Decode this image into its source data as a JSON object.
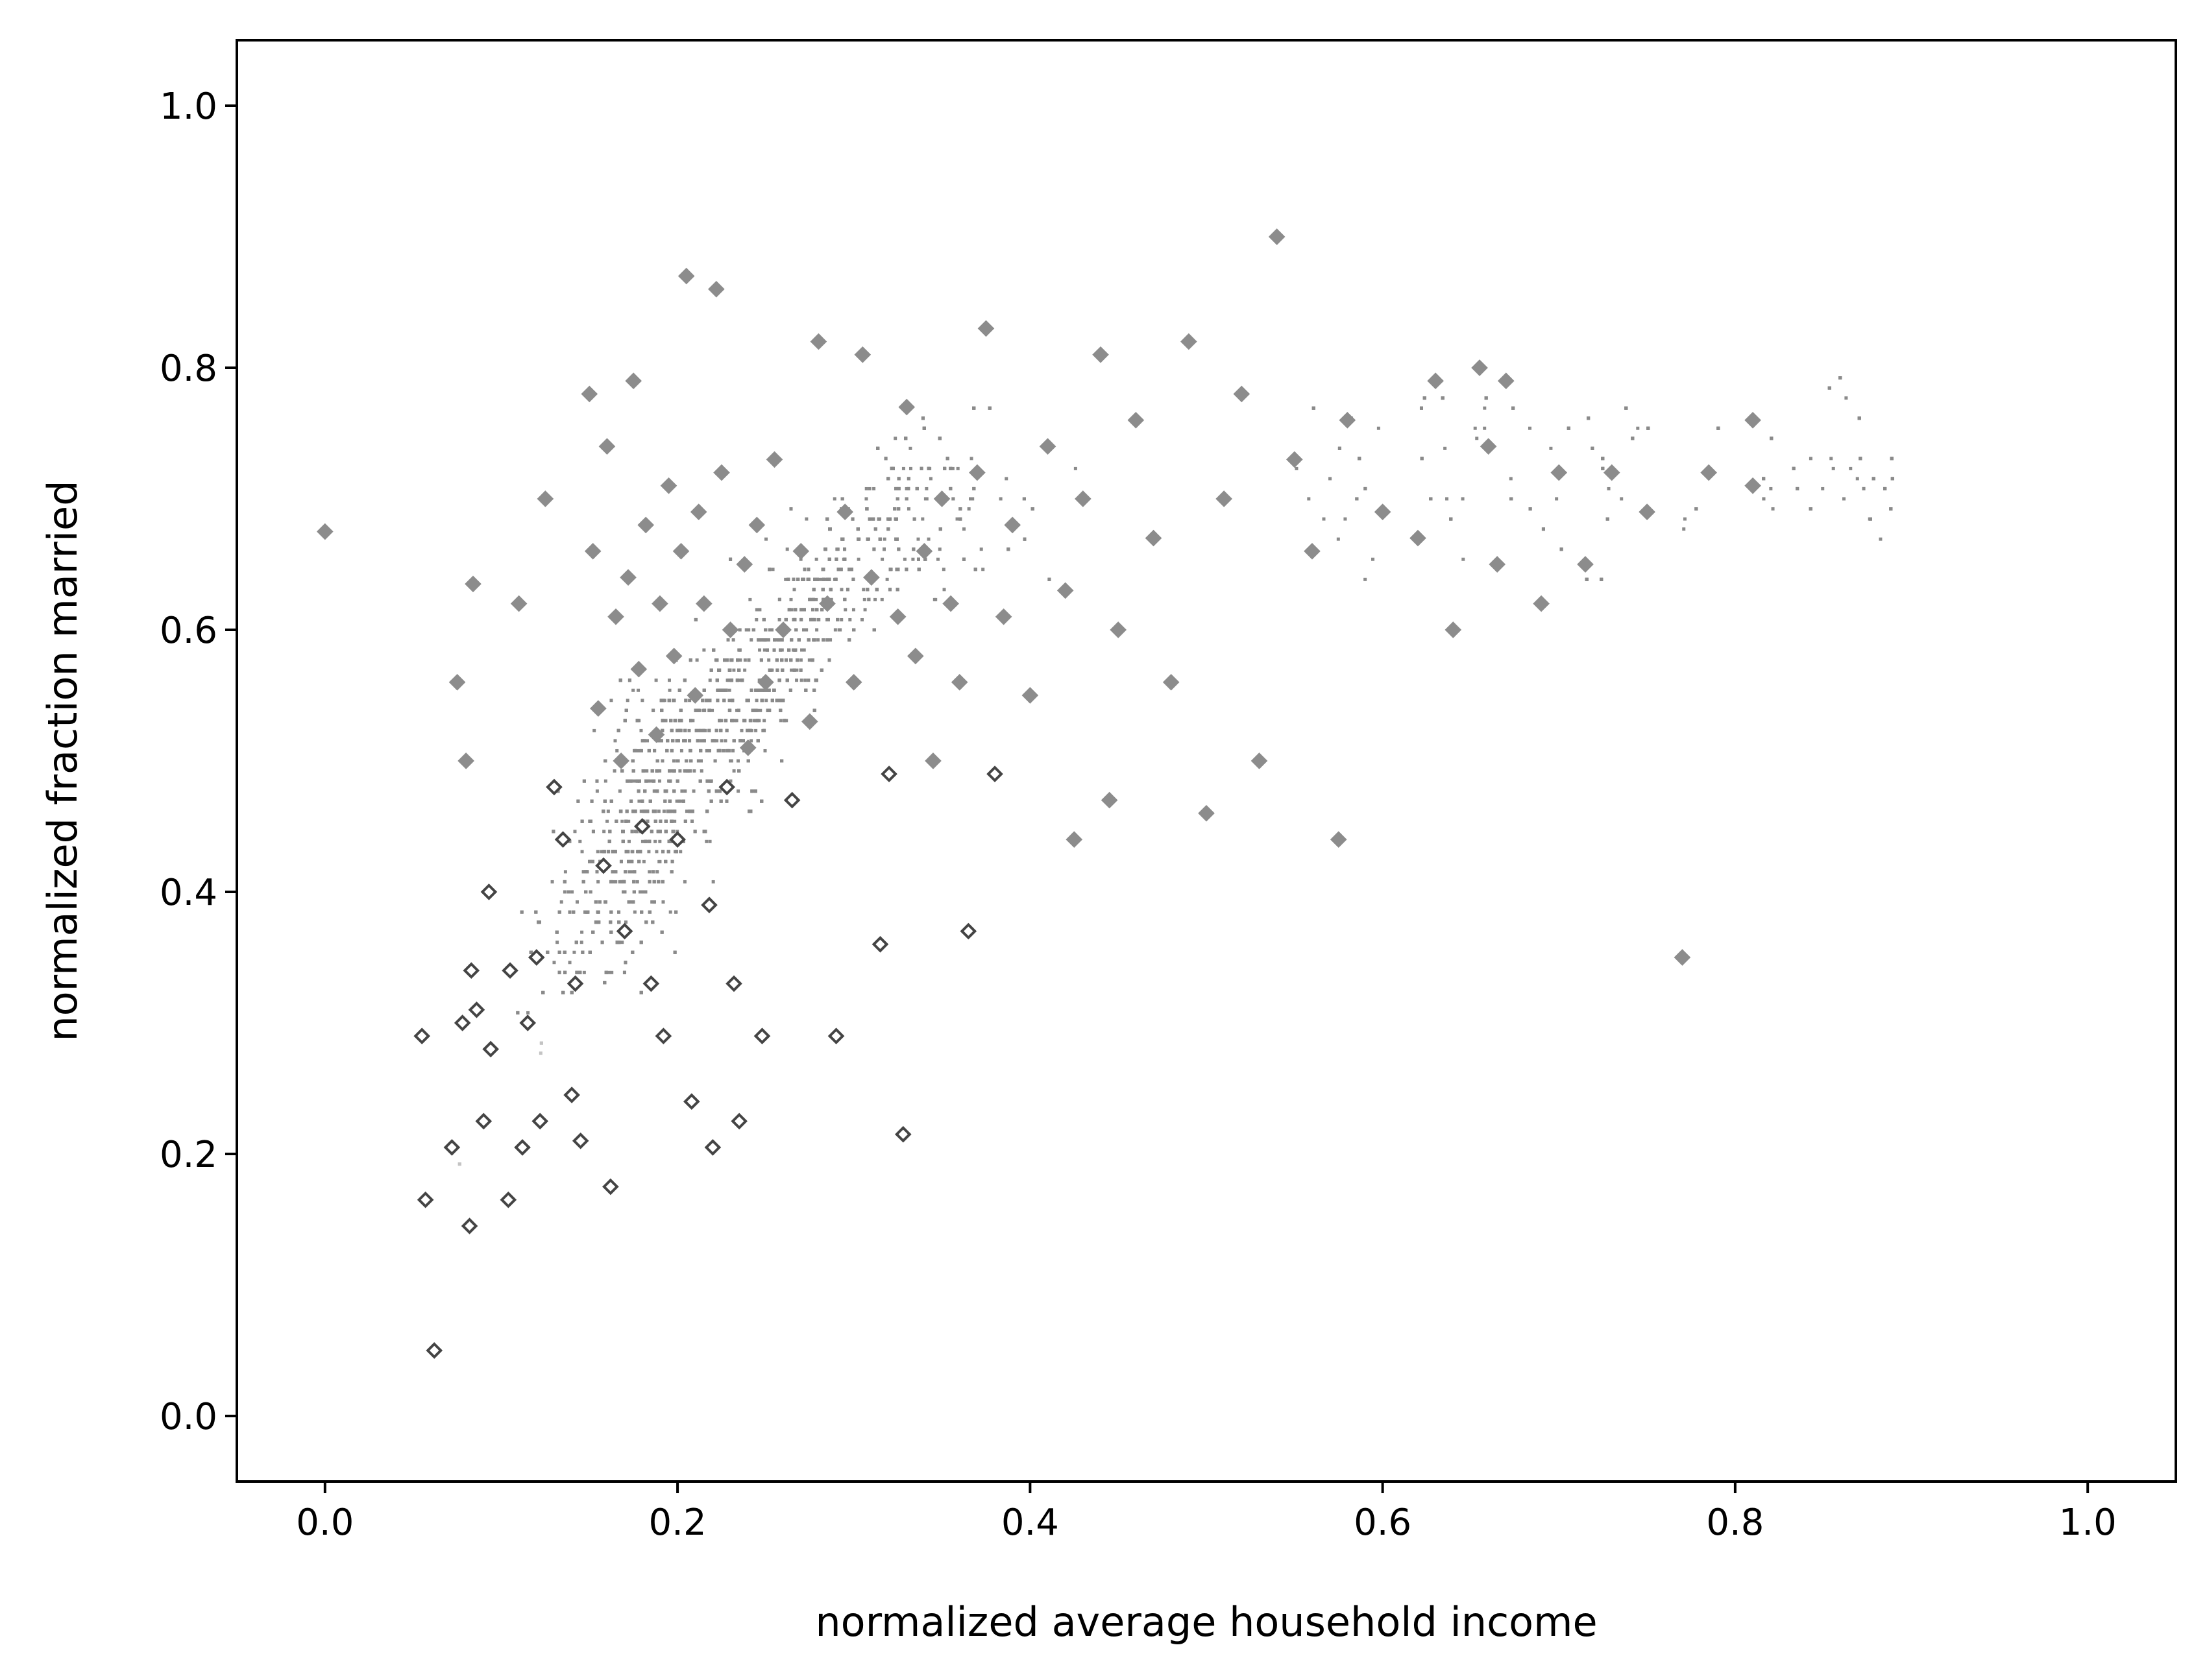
{
  "chart_data": {
    "type": "scatter",
    "title": "",
    "xlabel": "normalized average household income",
    "ylabel": "normalized fraction married",
    "xlim": [
      -0.05,
      1.05
    ],
    "ylim": [
      -0.05,
      1.05
    ],
    "xticks": [
      0.0,
      0.2,
      0.4,
      0.6,
      0.8,
      1.0
    ],
    "yticks": [
      0.0,
      0.2,
      0.4,
      0.6,
      0.8,
      1.0
    ],
    "xtick_labels": [
      "0.0",
      "0.2",
      "0.4",
      "0.6",
      "0.8",
      "1.0"
    ],
    "ytick_labels": [
      "0.0",
      "0.2",
      "0.4",
      "0.6",
      "0.8",
      "1.0"
    ],
    "grid": false,
    "legend": "none",
    "colors": {
      "dots": "#8a8a8a",
      "light_dots": "#c4c4c4",
      "diamond_fill": "#8c8c8c",
      "diamond_dark": "#444444"
    },
    "series": [
      {
        "marker": "diamond",
        "points": [
          [
            0.0,
            0.675
          ],
          [
            0.055,
            0.29
          ],
          [
            0.057,
            0.165
          ],
          [
            0.062,
            0.05
          ],
          [
            0.072,
            0.205
          ],
          [
            0.075,
            0.56
          ],
          [
            0.078,
            0.3
          ],
          [
            0.08,
            0.5
          ],
          [
            0.082,
            0.145
          ],
          [
            0.083,
            0.34
          ],
          [
            0.084,
            0.635
          ],
          [
            0.086,
            0.31
          ],
          [
            0.09,
            0.225
          ],
          [
            0.093,
            0.4
          ],
          [
            0.094,
            0.28
          ],
          [
            0.104,
            0.165
          ],
          [
            0.105,
            0.34
          ],
          [
            0.11,
            0.62
          ],
          [
            0.112,
            0.205
          ],
          [
            0.115,
            0.3
          ],
          [
            0.12,
            0.35
          ],
          [
            0.122,
            0.225
          ],
          [
            0.125,
            0.7
          ],
          [
            0.13,
            0.48
          ],
          [
            0.135,
            0.44
          ],
          [
            0.14,
            0.245
          ],
          [
            0.142,
            0.33
          ],
          [
            0.145,
            0.21
          ],
          [
            0.15,
            0.78
          ],
          [
            0.152,
            0.66
          ],
          [
            0.155,
            0.54
          ],
          [
            0.158,
            0.42
          ],
          [
            0.16,
            0.74
          ],
          [
            0.162,
            0.175
          ],
          [
            0.165,
            0.61
          ],
          [
            0.168,
            0.5
          ],
          [
            0.17,
            0.37
          ],
          [
            0.172,
            0.64
          ],
          [
            0.175,
            0.79
          ],
          [
            0.178,
            0.57
          ],
          [
            0.18,
            0.45
          ],
          [
            0.182,
            0.68
          ],
          [
            0.185,
            0.33
          ],
          [
            0.188,
            0.52
          ],
          [
            0.19,
            0.62
          ],
          [
            0.192,
            0.29
          ],
          [
            0.195,
            0.71
          ],
          [
            0.198,
            0.58
          ],
          [
            0.2,
            0.44
          ],
          [
            0.202,
            0.66
          ],
          [
            0.205,
            0.87
          ],
          [
            0.208,
            0.24
          ],
          [
            0.21,
            0.55
          ],
          [
            0.212,
            0.69
          ],
          [
            0.215,
            0.62
          ],
          [
            0.218,
            0.39
          ],
          [
            0.22,
            0.205
          ],
          [
            0.222,
            0.86
          ],
          [
            0.225,
            0.72
          ],
          [
            0.228,
            0.48
          ],
          [
            0.23,
            0.6
          ],
          [
            0.232,
            0.33
          ],
          [
            0.235,
            0.225
          ],
          [
            0.238,
            0.65
          ],
          [
            0.24,
            0.51
          ],
          [
            0.245,
            0.68
          ],
          [
            0.248,
            0.29
          ],
          [
            0.25,
            0.56
          ],
          [
            0.255,
            0.73
          ],
          [
            0.26,
            0.6
          ],
          [
            0.265,
            0.47
          ],
          [
            0.27,
            0.66
          ],
          [
            0.275,
            0.53
          ],
          [
            0.28,
            0.82
          ],
          [
            0.285,
            0.62
          ],
          [
            0.29,
            0.29
          ],
          [
            0.295,
            0.69
          ],
          [
            0.3,
            0.56
          ],
          [
            0.305,
            0.81
          ],
          [
            0.31,
            0.64
          ],
          [
            0.315,
            0.36
          ],
          [
            0.32,
            0.49
          ],
          [
            0.325,
            0.61
          ],
          [
            0.328,
            0.215
          ],
          [
            0.33,
            0.77
          ],
          [
            0.335,
            0.58
          ],
          [
            0.34,
            0.66
          ],
          [
            0.345,
            0.5
          ],
          [
            0.35,
            0.7
          ],
          [
            0.355,
            0.62
          ],
          [
            0.36,
            0.56
          ],
          [
            0.365,
            0.37
          ],
          [
            0.37,
            0.72
          ],
          [
            0.375,
            0.83
          ],
          [
            0.38,
            0.49
          ],
          [
            0.385,
            0.61
          ],
          [
            0.39,
            0.68
          ],
          [
            0.4,
            0.55
          ],
          [
            0.41,
            0.74
          ],
          [
            0.42,
            0.63
          ],
          [
            0.425,
            0.44
          ],
          [
            0.43,
            0.7
          ],
          [
            0.44,
            0.81
          ],
          [
            0.445,
            0.47
          ],
          [
            0.45,
            0.6
          ],
          [
            0.46,
            0.76
          ],
          [
            0.47,
            0.67
          ],
          [
            0.48,
            0.56
          ],
          [
            0.49,
            0.82
          ],
          [
            0.5,
            0.46
          ],
          [
            0.51,
            0.7
          ],
          [
            0.52,
            0.78
          ],
          [
            0.53,
            0.5
          ],
          [
            0.54,
            0.9
          ],
          [
            0.55,
            0.73
          ],
          [
            0.56,
            0.66
          ],
          [
            0.575,
            0.44
          ],
          [
            0.58,
            0.76
          ],
          [
            0.6,
            0.69
          ],
          [
            0.62,
            0.67
          ],
          [
            0.63,
            0.79
          ],
          [
            0.64,
            0.6
          ],
          [
            0.655,
            0.8
          ],
          [
            0.66,
            0.74
          ],
          [
            0.665,
            0.65
          ],
          [
            0.67,
            0.79
          ],
          [
            0.69,
            0.62
          ],
          [
            0.7,
            0.72
          ],
          [
            0.715,
            0.65
          ],
          [
            0.73,
            0.72
          ],
          [
            0.75,
            0.69
          ],
          [
            0.77,
            0.35
          ],
          [
            0.785,
            0.72
          ],
          [
            0.81,
            0.76
          ],
          [
            0.81,
            0.71
          ]
        ]
      }
    ]
  }
}
